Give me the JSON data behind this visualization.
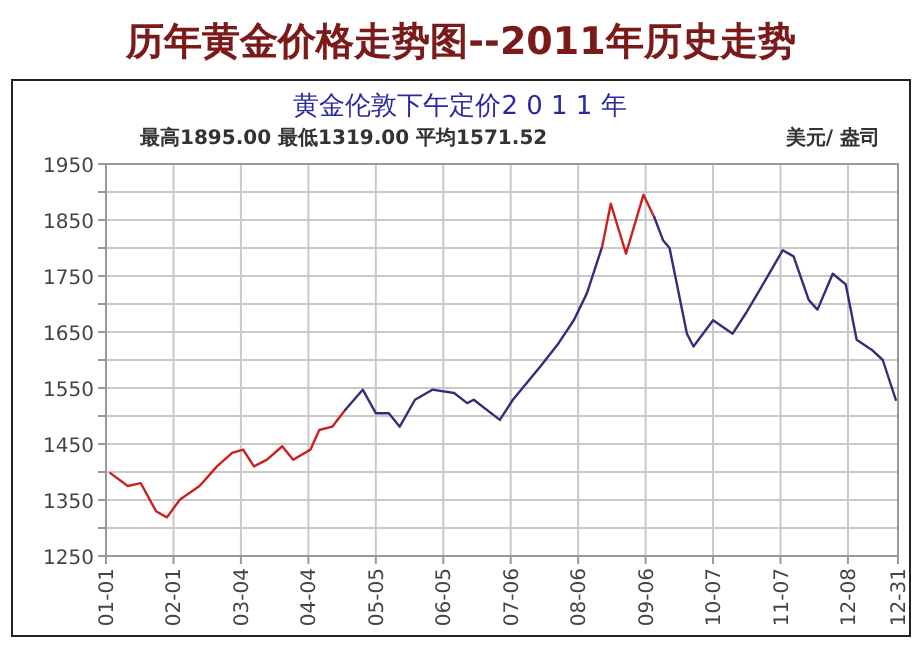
{
  "chart_data": {
    "type": "line",
    "title": "历年黄金价格走势图--2011年历史走势",
    "subtitle": "黄金伦敦下午定价2 0 1 1 年",
    "annotations": [
      "最高1895.00  最低1319.00  平均1571.52",
      "美元/ 盎司"
    ],
    "xlim": [
      "2011-01-01",
      "2011-12-31"
    ],
    "xticks": [
      {
        "value": "2011-01-01",
        "label": "01-01"
      },
      {
        "value": "2011-02-01",
        "label": "02-01"
      },
      {
        "value": "2011-03-04",
        "label": "03-04"
      },
      {
        "value": "2011-04-04",
        "label": "04-04"
      },
      {
        "value": "2011-05-05",
        "label": "05-05"
      },
      {
        "value": "2011-06-05",
        "label": "06-05"
      },
      {
        "value": "2011-07-06",
        "label": "07-06"
      },
      {
        "value": "2011-08-06",
        "label": "08-06"
      },
      {
        "value": "2011-09-06",
        "label": "09-06"
      },
      {
        "value": "2011-10-07",
        "label": "10-07"
      },
      {
        "value": "2011-11-07",
        "label": "11-07"
      },
      {
        "value": "2011-12-08",
        "label": "12-08"
      },
      {
        "value": "2011-12-31",
        "label": "12-31"
      }
    ],
    "ylim": [
      1250,
      1950
    ],
    "yticks": [
      1250,
      {
        "value": 1300,
        "label": null
      },
      1350,
      {
        "value": 1400,
        "label": null
      },
      1450,
      {
        "value": 1500,
        "label": null
      },
      1550,
      {
        "value": 1600,
        "label": null
      },
      1650,
      {
        "value": 1700,
        "label": null
      },
      1750,
      {
        "value": 1800,
        "label": null
      },
      1850,
      {
        "value": 1900,
        "label": null
      },
      1950
    ],
    "grid": true,
    "marker": "none",
    "line_style": "solid",
    "series": [
      {
        "color": "#cc2020",
        "x": [
          "2011-01-03",
          "2011-01-11",
          "2011-01-17",
          "2011-01-24",
          "2011-01-29",
          "2011-02-04",
          "2011-02-13",
          "2011-02-21",
          "2011-02-28",
          "2011-03-05",
          "2011-03-10",
          "2011-03-16",
          "2011-03-23",
          "2011-03-28",
          "2011-04-05",
          "2011-04-09",
          "2011-04-15",
          "2011-04-21"
        ],
        "values": [
          1398,
          1375,
          1380,
          1330,
          1319,
          1351,
          1375,
          1410,
          1434,
          1440,
          1410,
          1422,
          1446,
          1422,
          1440,
          1475,
          1481,
          1511
        ]
      },
      {
        "color": "#3a2a7a",
        "x": [
          "2011-04-21",
          "2011-04-29",
          "2011-05-05",
          "2011-05-11",
          "2011-05-16",
          "2011-05-23",
          "2011-05-31",
          "2011-06-10",
          "2011-06-16",
          "2011-06-19",
          "2011-07-01",
          "2011-07-07",
          "2011-07-20",
          "2011-07-28",
          "2011-08-04",
          "2011-08-10",
          "2011-08-17"
        ],
        "values": [
          1511,
          1547,
          1505,
          1505,
          1481,
          1529,
          1547,
          1541,
          1523,
          1529,
          1493,
          1529,
          1590,
          1630,
          1671,
          1719,
          1802
        ]
      },
      {
        "color": "#cc2020",
        "x": [
          "2011-08-17",
          "2011-08-21",
          "2011-08-28",
          "2011-09-05",
          "2011-09-10"
        ],
        "values": [
          1802,
          1879,
          1790,
          1895,
          1855
        ]
      },
      {
        "color": "#3a2a7a",
        "x": [
          "2011-09-10",
          "2011-09-14",
          "2011-09-17",
          "2011-09-25",
          "2011-09-28",
          "2011-10-07",
          "2011-10-16",
          "2011-10-22",
          "2011-10-31",
          "2011-11-08",
          "2011-11-13",
          "2011-11-20",
          "2011-11-24",
          "2011-12-01",
          "2011-12-07",
          "2011-12-12",
          "2011-12-19",
          "2011-12-24",
          "2011-12-30"
        ],
        "values": [
          1855,
          1814,
          1800,
          1647,
          1624,
          1671,
          1647,
          1683,
          1742,
          1796,
          1785,
          1707,
          1690,
          1754,
          1735,
          1636,
          1618,
          1600,
          1529
        ]
      }
    ]
  }
}
